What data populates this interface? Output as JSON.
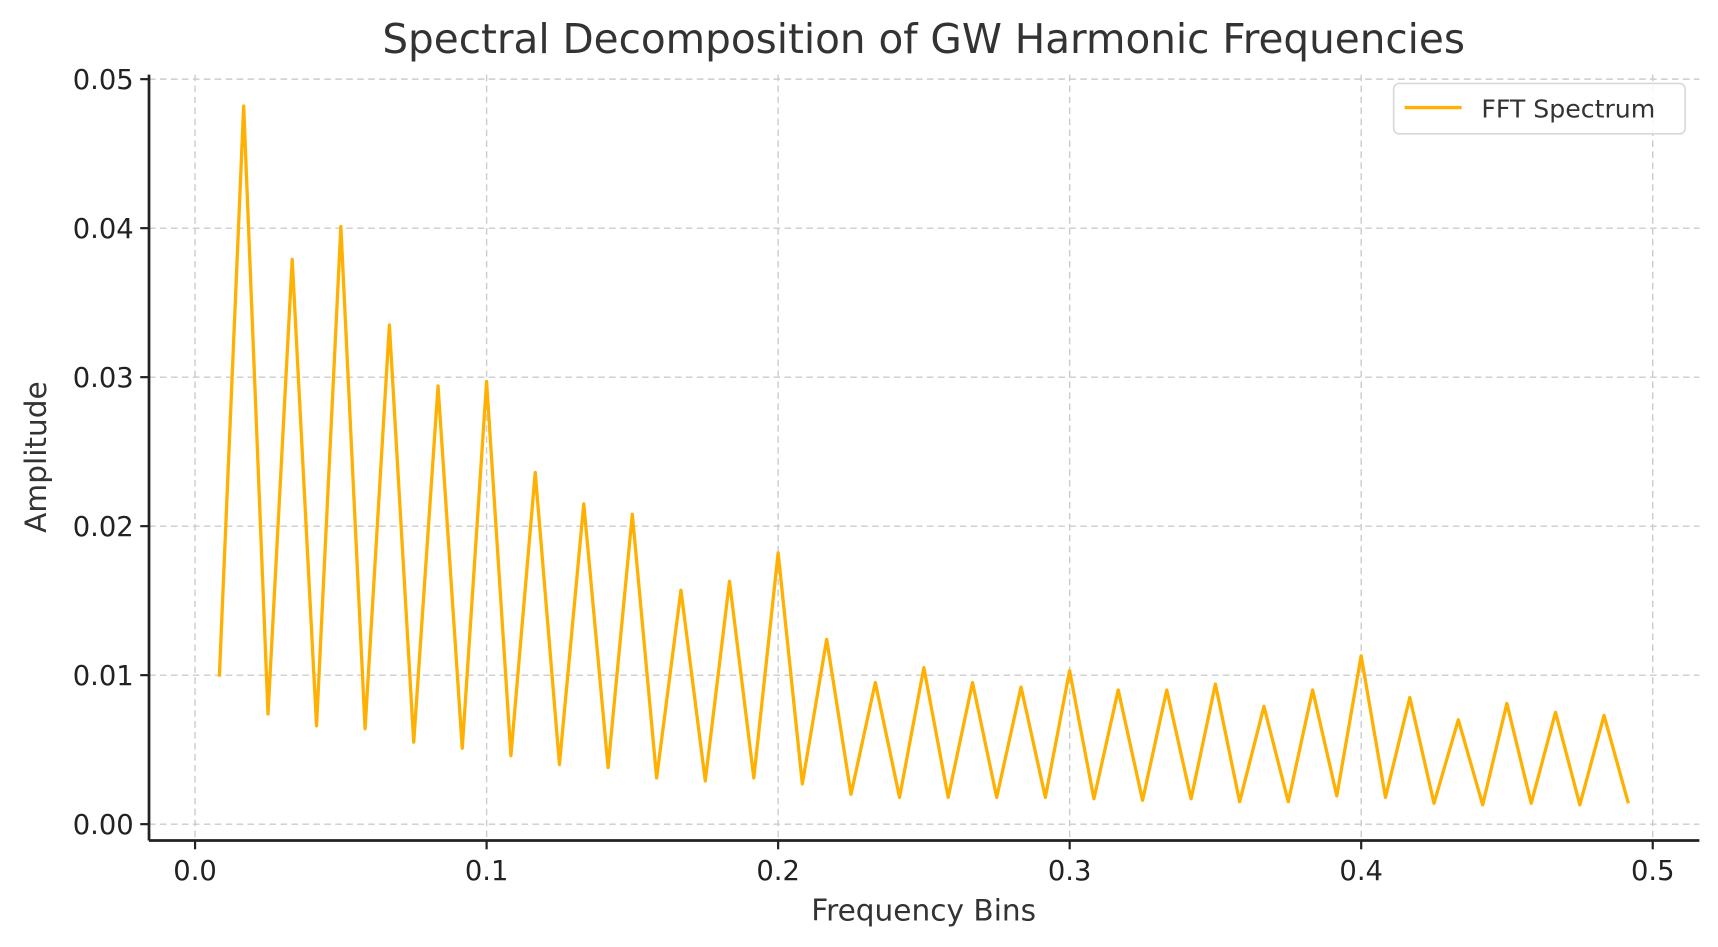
{
  "chart_data": {
    "type": "line",
    "title": "Spectral Decomposition of GW Harmonic Frequencies",
    "xlabel": "Frequency Bins",
    "ylabel": "Amplitude",
    "xlim": [
      -0.0158,
      0.516
    ],
    "ylim": [
      -0.0011,
      0.0503
    ],
    "grid": true,
    "legend_placement": "top-right",
    "x_ticks": [
      0.0,
      0.1,
      0.2,
      0.3,
      0.4,
      0.5
    ],
    "x_tick_labels": [
      "0.0",
      "0.1",
      "0.2",
      "0.3",
      "0.4",
      "0.5"
    ],
    "y_ticks": [
      0.0,
      0.01,
      0.02,
      0.03,
      0.04,
      0.05
    ],
    "y_tick_labels": [
      "0.00",
      "0.01",
      "0.02",
      "0.03",
      "0.04",
      "0.05"
    ],
    "series": [
      {
        "name": "FFT Spectrum",
        "color": "#FFB000",
        "x_step": 0.008333,
        "x_start": 0.008333,
        "values": [
          0.0099,
          0.0482,
          0.0074,
          0.0379,
          0.0066,
          0.0401,
          0.0064,
          0.0335,
          0.0055,
          0.0294,
          0.0051,
          0.0297,
          0.0046,
          0.0236,
          0.004,
          0.0215,
          0.0038,
          0.0208,
          0.0031,
          0.0157,
          0.0029,
          0.0163,
          0.0031,
          0.0182,
          0.0027,
          0.0124,
          0.002,
          0.0095,
          0.0018,
          0.0105,
          0.0018,
          0.0095,
          0.0018,
          0.0092,
          0.0018,
          0.0103,
          0.0017,
          0.009,
          0.0016,
          0.009,
          0.0017,
          0.0094,
          0.0015,
          0.0079,
          0.0015,
          0.009,
          0.0019,
          0.0113,
          0.0018,
          0.0085,
          0.0014,
          0.007,
          0.0013,
          0.0081,
          0.0014,
          0.0075,
          0.0013,
          0.0073,
          0.0014
        ]
      }
    ]
  }
}
